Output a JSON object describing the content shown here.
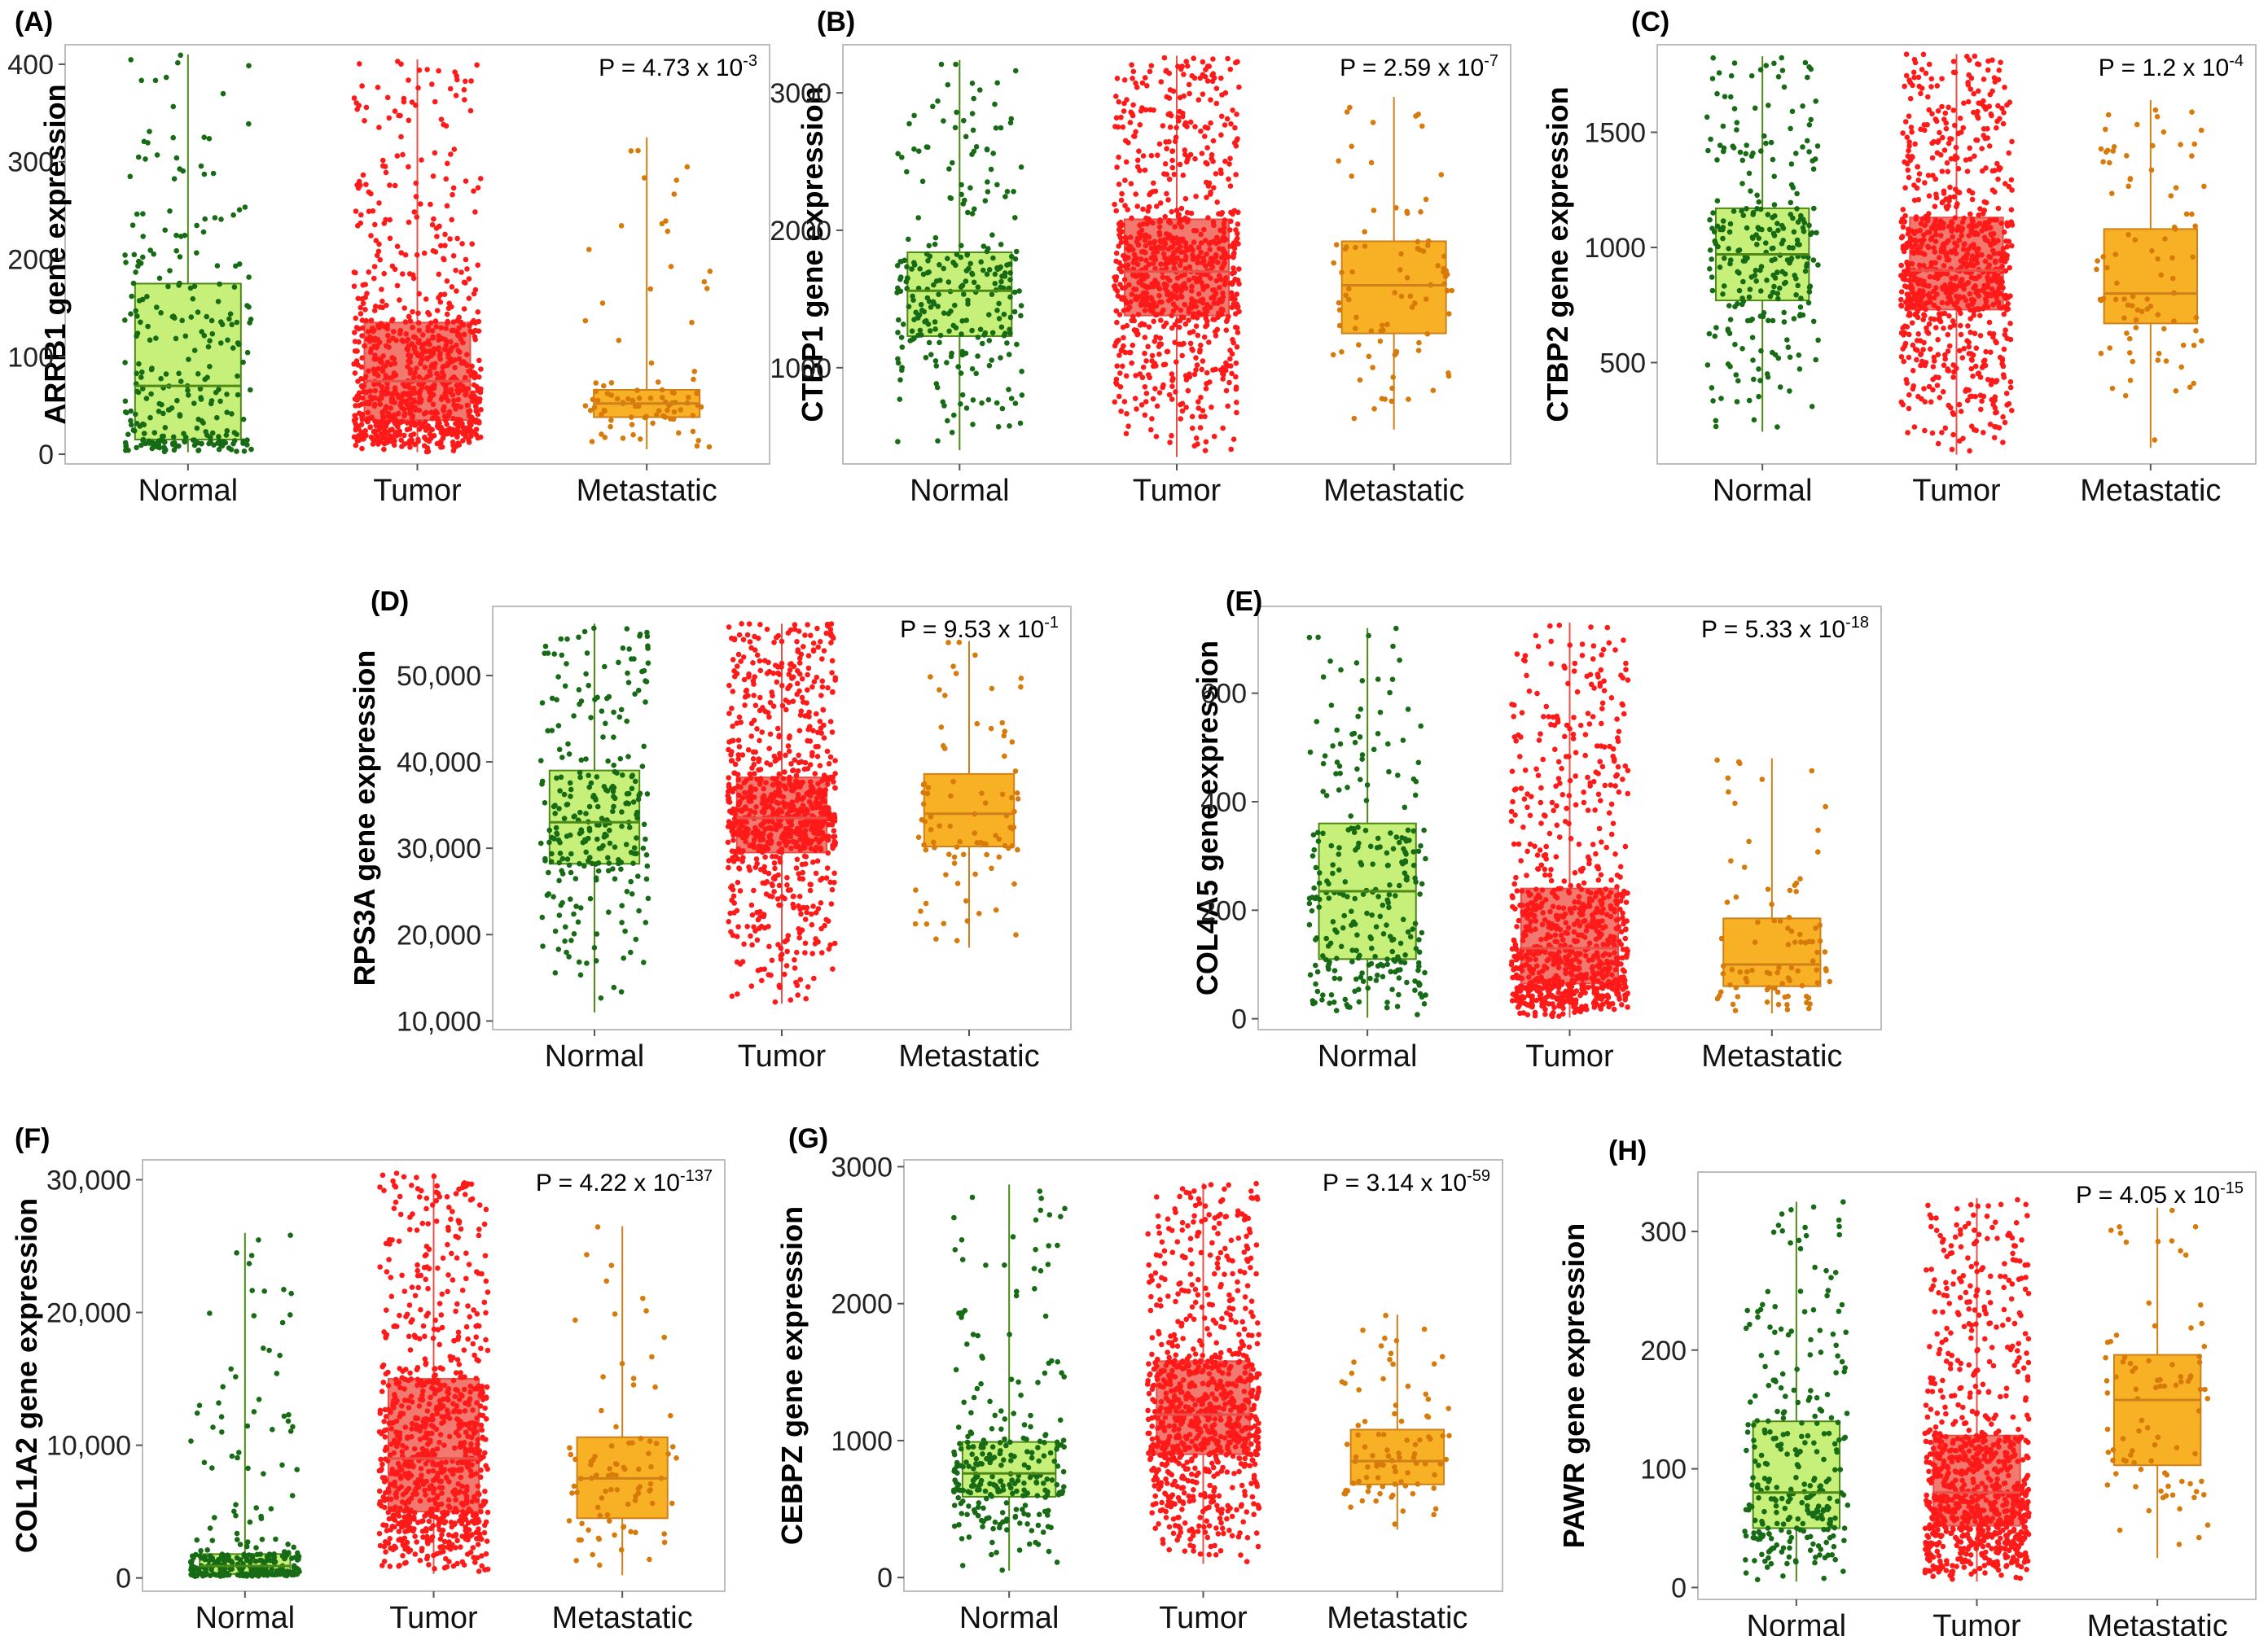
{
  "chart_data": [
    {
      "panel": "(A)",
      "type": "box",
      "ylabel": "ARRB1 gene expression",
      "pvalue": {
        "text": "P = 4.73 x 10",
        "exp": "-3"
      },
      "ylim": [
        -10,
        420
      ],
      "yticks": [
        0,
        100,
        200,
        300,
        400
      ],
      "ytick_labels": [
        "0",
        "100",
        "200",
        "300",
        "400"
      ],
      "categories": [
        "Normal",
        "Tumor",
        "Metastatic"
      ],
      "series": [
        {
          "name": "Normal",
          "min": 2,
          "q1": 15,
          "median": 70,
          "q3": 175,
          "max": 410,
          "n": 280,
          "shape": 1.3
        },
        {
          "name": "Tumor",
          "min": 2,
          "q1": 35,
          "median": 75,
          "q3": 135,
          "max": 405,
          "n": 900,
          "shape": 1.5
        },
        {
          "name": "Metastatic",
          "min": 5,
          "q1": 38,
          "median": 52,
          "q3": 66,
          "max": 325,
          "n": 90,
          "shape": 1.8
        }
      ]
    },
    {
      "panel": "(B)",
      "type": "box",
      "ylabel": "CTBP1 gene expression",
      "pvalue": {
        "text": "P = 2.59 x 10",
        "exp": "-7"
      },
      "ylim": [
        300,
        3350
      ],
      "yticks": [
        1000,
        2000,
        3000
      ],
      "ytick_labels": [
        "1000",
        "2000",
        "3000"
      ],
      "categories": [
        "Normal",
        "Tumor",
        "Metastatic"
      ],
      "series": [
        {
          "name": "Normal",
          "min": 400,
          "q1": 1230,
          "median": 1560,
          "q3": 1840,
          "max": 3240,
          "n": 280,
          "shape": 1
        },
        {
          "name": "Tumor",
          "min": 350,
          "q1": 1380,
          "median": 1700,
          "q3": 2080,
          "max": 3270,
          "n": 900,
          "shape": 1
        },
        {
          "name": "Metastatic",
          "min": 550,
          "q1": 1250,
          "median": 1600,
          "q3": 1920,
          "max": 2970,
          "n": 90,
          "shape": 1
        }
      ]
    },
    {
      "panel": "(C)",
      "type": "box",
      "ylabel": "CTBP2 gene expression",
      "pvalue": {
        "text": "P = 1.2 x 10",
        "exp": "-4"
      },
      "ylim": [
        60,
        1880
      ],
      "yticks": [
        500,
        1000,
        1500
      ],
      "ytick_labels": [
        "500",
        "1000",
        "1500"
      ],
      "categories": [
        "Normal",
        "Tumor",
        "Metastatic"
      ],
      "series": [
        {
          "name": "Normal",
          "min": 200,
          "q1": 770,
          "median": 970,
          "q3": 1170,
          "max": 1830,
          "n": 280,
          "shape": 1
        },
        {
          "name": "Tumor",
          "min": 100,
          "q1": 730,
          "median": 900,
          "q3": 1130,
          "max": 1840,
          "n": 900,
          "shape": 1
        },
        {
          "name": "Metastatic",
          "min": 130,
          "q1": 670,
          "median": 800,
          "q3": 1080,
          "max": 1640,
          "n": 90,
          "shape": 1
        }
      ]
    },
    {
      "panel": "(D)",
      "type": "box",
      "ylabel": "RPS3A gene expression",
      "pvalue": {
        "text": "P = 9.53 x 10",
        "exp": "-1"
      },
      "ylim": [
        9000,
        58000
      ],
      "yticks": [
        10000,
        20000,
        30000,
        40000,
        50000
      ],
      "ytick_labels": [
        "10,000",
        "20,000",
        "30,000",
        "40,000",
        "50,000"
      ],
      "categories": [
        "Normal",
        "Tumor",
        "Metastatic"
      ],
      "series": [
        {
          "name": "Normal",
          "min": 11000,
          "q1": 28200,
          "median": 33000,
          "q3": 39000,
          "max": 56000,
          "n": 280,
          "shape": 1
        },
        {
          "name": "Tumor",
          "min": 12000,
          "q1": 29500,
          "median": 33500,
          "q3": 38200,
          "max": 56000,
          "n": 900,
          "shape": 1
        },
        {
          "name": "Metastatic",
          "min": 18500,
          "q1": 30200,
          "median": 34000,
          "q3": 38600,
          "max": 54000,
          "n": 90,
          "shape": 1
        }
      ]
    },
    {
      "panel": "(E)",
      "type": "box",
      "ylabel": "COL4A5 gene expression",
      "pvalue": {
        "text": "P = 5.33 x 10",
        "exp": "-18"
      },
      "ylim": [
        -20,
        760
      ],
      "yticks": [
        0,
        200,
        400,
        600
      ],
      "ytick_labels": [
        "0",
        "200",
        "400",
        "600"
      ],
      "categories": [
        "Normal",
        "Tumor",
        "Metastatic"
      ],
      "series": [
        {
          "name": "Normal",
          "min": 2,
          "q1": 110,
          "median": 235,
          "q3": 360,
          "max": 720,
          "n": 280,
          "shape": 1
        },
        {
          "name": "Tumor",
          "min": 2,
          "q1": 65,
          "median": 130,
          "q3": 240,
          "max": 730,
          "n": 900,
          "shape": 1.3
        },
        {
          "name": "Metastatic",
          "min": 10,
          "q1": 60,
          "median": 100,
          "q3": 185,
          "max": 480,
          "n": 90,
          "shape": 1.4
        }
      ]
    },
    {
      "panel": "(F)",
      "type": "box",
      "ylabel": "COL1A2 gene expression",
      "pvalue": {
        "text": "P = 4.22 x 10",
        "exp": "-137"
      },
      "ylim": [
        -1000,
        31500
      ],
      "yticks": [
        0,
        10000,
        20000,
        30000
      ],
      "ytick_labels": [
        "0",
        "10,000",
        "20,000",
        "30,000"
      ],
      "categories": [
        "Normal",
        "Tumor",
        "Metastatic"
      ],
      "series": [
        {
          "name": "Normal",
          "min": 100,
          "q1": 300,
          "median": 900,
          "q3": 1800,
          "max": 26000,
          "n": 280,
          "shape": 1.8
        },
        {
          "name": "Tumor",
          "min": 300,
          "q1": 5000,
          "median": 9000,
          "q3": 15000,
          "max": 30500,
          "n": 900,
          "shape": 1.1
        },
        {
          "name": "Metastatic",
          "min": 200,
          "q1": 4500,
          "median": 7500,
          "q3": 10600,
          "max": 26500,
          "n": 90,
          "shape": 1.3
        }
      ]
    },
    {
      "panel": "(G)",
      "type": "box",
      "ylabel": "CEBPZ gene expression",
      "pvalue": {
        "text": "P = 3.14 x 10",
        "exp": "-59"
      },
      "ylim": [
        -100,
        3050
      ],
      "yticks": [
        0,
        1000,
        2000,
        3000
      ],
      "ytick_labels": [
        "0",
        "1000",
        "2000",
        "3000"
      ],
      "categories": [
        "Normal",
        "Tumor",
        "Metastatic"
      ],
      "series": [
        {
          "name": "Normal",
          "min": 50,
          "q1": 590,
          "median": 760,
          "q3": 990,
          "max": 2870,
          "n": 280,
          "shape": 1.5
        },
        {
          "name": "Tumor",
          "min": 100,
          "q1": 900,
          "median": 1190,
          "q3": 1580,
          "max": 2880,
          "n": 900,
          "shape": 1.2
        },
        {
          "name": "Metastatic",
          "min": 350,
          "q1": 680,
          "median": 850,
          "q3": 1080,
          "max": 1920,
          "n": 90,
          "shape": 1.3
        }
      ]
    },
    {
      "panel": "(H)",
      "type": "box",
      "ylabel": "PAWR gene expression",
      "pvalue": {
        "text": "P = 4.05 x 10",
        "exp": "-15"
      },
      "ylim": [
        -10,
        350
      ],
      "yticks": [
        0,
        100,
        200,
        300
      ],
      "ytick_labels": [
        "0",
        "100",
        "200",
        "300"
      ],
      "categories": [
        "Normal",
        "Tumor",
        "Metastatic"
      ],
      "series": [
        {
          "name": "Normal",
          "min": 5,
          "q1": 50,
          "median": 80,
          "q3": 140,
          "max": 325,
          "n": 280,
          "shape": 1.3
        },
        {
          "name": "Tumor",
          "min": 5,
          "q1": 52,
          "median": 80,
          "q3": 128,
          "max": 328,
          "n": 900,
          "shape": 1.3
        },
        {
          "name": "Metastatic",
          "min": 25,
          "q1": 103,
          "median": 158,
          "q3": 196,
          "max": 320,
          "n": 90,
          "shape": 1
        }
      ]
    }
  ],
  "colors": {
    "normal_point": "#166b14",
    "normal_box": "#c6f07a",
    "normal_line": "#4c8a16",
    "tumor_point": "#ff1a1a",
    "tumor_box": "#f2796f",
    "tumor_line": "#e8504a",
    "metastatic_point": "#d77a0a",
    "metastatic_box": "#f8b124",
    "metastatic_line": "#cf8018"
  }
}
